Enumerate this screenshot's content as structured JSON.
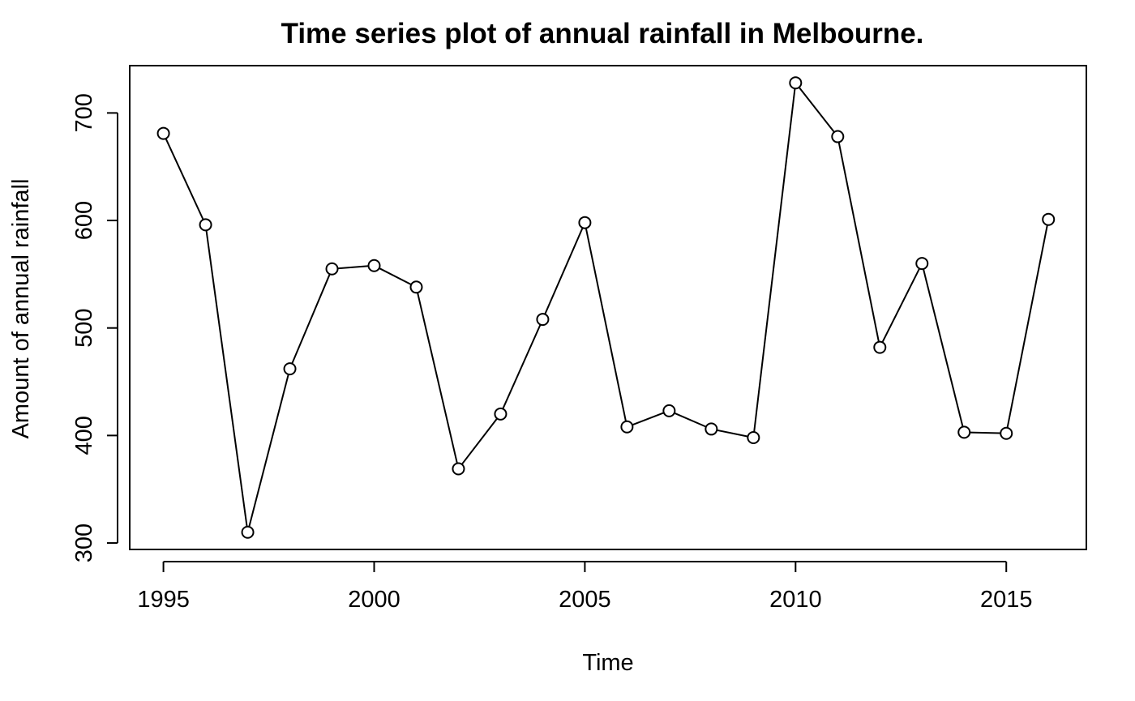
{
  "chart_data": {
    "type": "line",
    "title": "Time series plot of annual rainfall in Melbourne.",
    "xlabel": "Time",
    "ylabel": "Amount of annual rainfall",
    "xlim": [
      1994.2,
      2016.9
    ],
    "ylim": [
      294,
      744
    ],
    "x_ticks": [
      1995,
      2000,
      2005,
      2010,
      2015
    ],
    "y_ticks": [
      300,
      400,
      500,
      600,
      700
    ],
    "markers": "open-circle",
    "grid": false,
    "legend": "none",
    "line_color": "#000000",
    "x": [
      1995,
      1996,
      1997,
      1998,
      1999,
      2000,
      2001,
      2002,
      2003,
      2004,
      2005,
      2006,
      2007,
      2008,
      2009,
      2010,
      2011,
      2012,
      2013,
      2014,
      2015,
      2016
    ],
    "series": [
      {
        "values": [
          681,
          596,
          310,
          462,
          555,
          558,
          538,
          369,
          420,
          508,
          598,
          408,
          423,
          406,
          398,
          728,
          678,
          482,
          560,
          403,
          402,
          601
        ]
      }
    ]
  }
}
